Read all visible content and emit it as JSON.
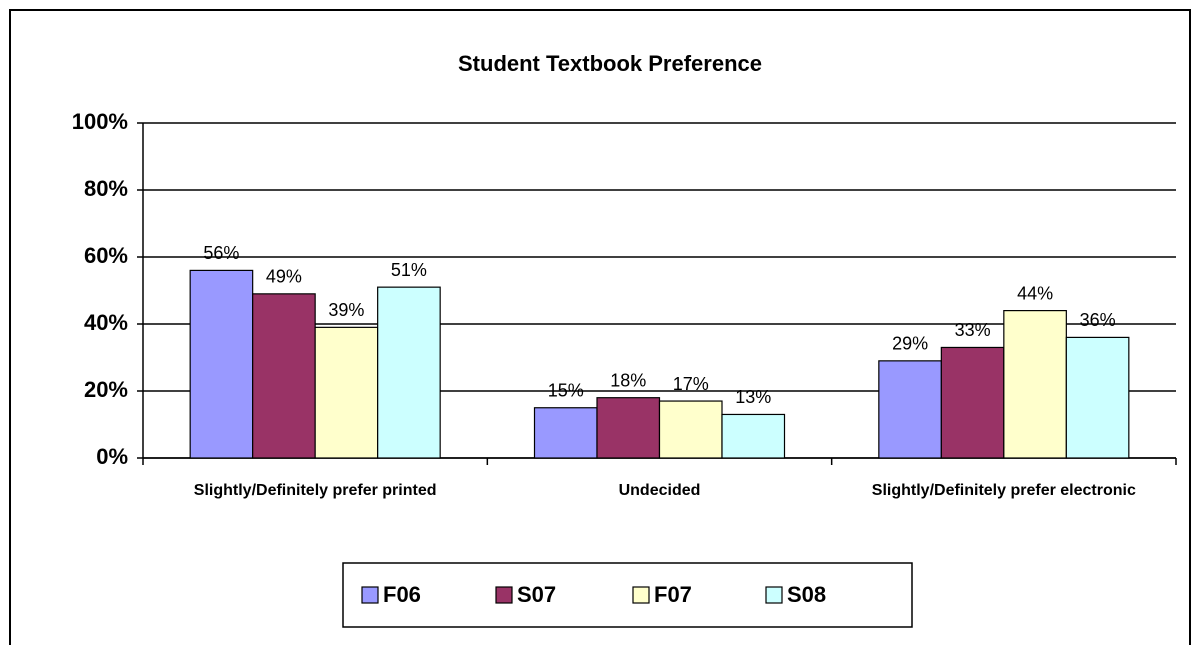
{
  "chart_data": {
    "type": "bar",
    "title": "Student Textbook Preference",
    "categories": [
      "Slightly/Definitely prefer printed",
      "Undecided",
      "Slightly/Definitely prefer electronic"
    ],
    "series": [
      {
        "name": "F06",
        "color": "#9999ff",
        "values": [
          56,
          15,
          29
        ],
        "value_labels": [
          "56%",
          "15%",
          "29%"
        ]
      },
      {
        "name": "S07",
        "color": "#993366",
        "values": [
          49,
          18,
          33
        ],
        "value_labels": [
          "49%",
          "18%",
          "33%"
        ]
      },
      {
        "name": "F07",
        "color": "#ffffcc",
        "values": [
          39,
          17,
          44
        ],
        "value_labels": [
          "39%",
          "17%",
          "44%"
        ]
      },
      {
        "name": "S08",
        "color": "#ccffff",
        "values": [
          51,
          13,
          36
        ],
        "value_labels": [
          "51%",
          "13%",
          "36%"
        ]
      }
    ],
    "ylim": [
      0,
      100
    ],
    "yticks": [
      {
        "value": 0,
        "label": "0%"
      },
      {
        "value": 20,
        "label": "20%"
      },
      {
        "value": 40,
        "label": "40%"
      },
      {
        "value": 60,
        "label": "60%"
      },
      {
        "value": 80,
        "label": "80%"
      },
      {
        "value": 100,
        "label": "100%"
      }
    ],
    "grid": true,
    "legend": "bottom"
  }
}
